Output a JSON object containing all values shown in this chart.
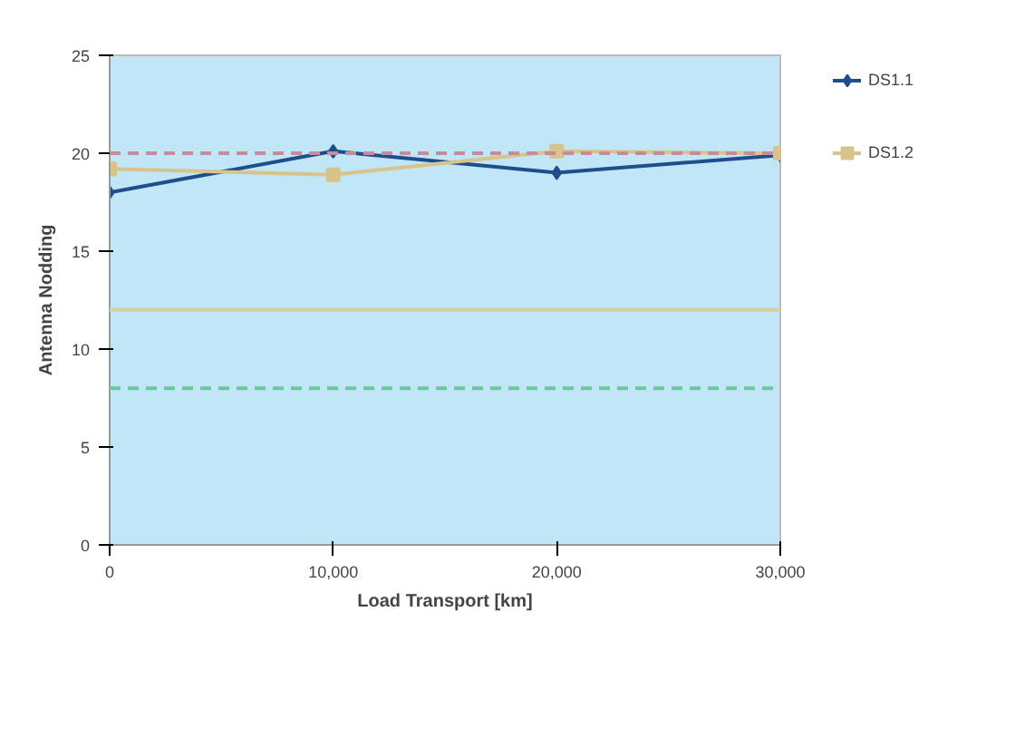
{
  "chart_data": {
    "type": "line",
    "xlabel": "Load Transport [km]",
    "ylabel": "Antenna Nodding",
    "x": [
      0,
      10000,
      20000,
      30000
    ],
    "series": [
      {
        "name": "DS1.1",
        "color": "#1f4e8c",
        "values": [
          18.0,
          20.1,
          19.0,
          19.9
        ],
        "marker": "diamond"
      },
      {
        "name": "DS1.2",
        "color": "#d8c48a",
        "values": [
          19.2,
          18.9,
          20.1,
          20.0
        ],
        "marker": "square"
      }
    ],
    "ref_lines": [
      {
        "axis": "y",
        "value": 20,
        "color": "#c98a9a",
        "line_style": "dashed"
      },
      {
        "axis": "y",
        "value": 12,
        "color": "#d8cf9a",
        "line_style": "solid"
      },
      {
        "axis": "y",
        "value": 8,
        "color": "#6cc6a0",
        "line_style": "dashed"
      }
    ],
    "xlim": [
      0,
      30000
    ],
    "xticks": [
      {
        "value": 0,
        "label": "0"
      },
      {
        "value": 10000,
        "label": "10,000"
      },
      {
        "value": 20000,
        "label": "20,000"
      },
      {
        "value": 30000,
        "label": "30,000"
      }
    ],
    "ylim": [
      0,
      25
    ],
    "yticks": [
      0,
      5,
      10,
      15,
      20,
      25
    ],
    "grid": false,
    "legend": "right",
    "line_style": "solid"
  }
}
